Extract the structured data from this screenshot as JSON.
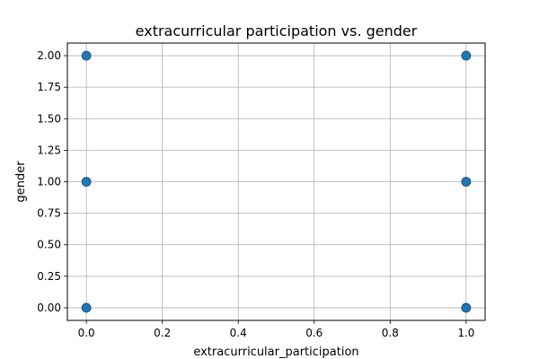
{
  "chart_data": {
    "type": "scatter",
    "title": "extracurricular participation vs. gender",
    "xlabel": "extracurricular_participation",
    "ylabel": "gender",
    "xlim": [
      -0.05,
      1.05
    ],
    "ylim": [
      -0.1,
      2.1
    ],
    "xticks": [
      0.0,
      0.2,
      0.4,
      0.6,
      0.8,
      1.0
    ],
    "xtick_labels": [
      "0.0",
      "0.2",
      "0.4",
      "0.6",
      "0.8",
      "1.0"
    ],
    "yticks": [
      0.0,
      0.25,
      0.5,
      0.75,
      1.0,
      1.25,
      1.5,
      1.75,
      2.0
    ],
    "ytick_labels": [
      "0.00",
      "0.25",
      "0.50",
      "0.75",
      "1.00",
      "1.25",
      "1.50",
      "1.75",
      "2.00"
    ],
    "grid": true,
    "color": "#1f77b4",
    "points": [
      {
        "x": 0,
        "y": 0
      },
      {
        "x": 0,
        "y": 1
      },
      {
        "x": 0,
        "y": 2
      },
      {
        "x": 1,
        "y": 0
      },
      {
        "x": 1,
        "y": 1
      },
      {
        "x": 1,
        "y": 2
      }
    ]
  }
}
